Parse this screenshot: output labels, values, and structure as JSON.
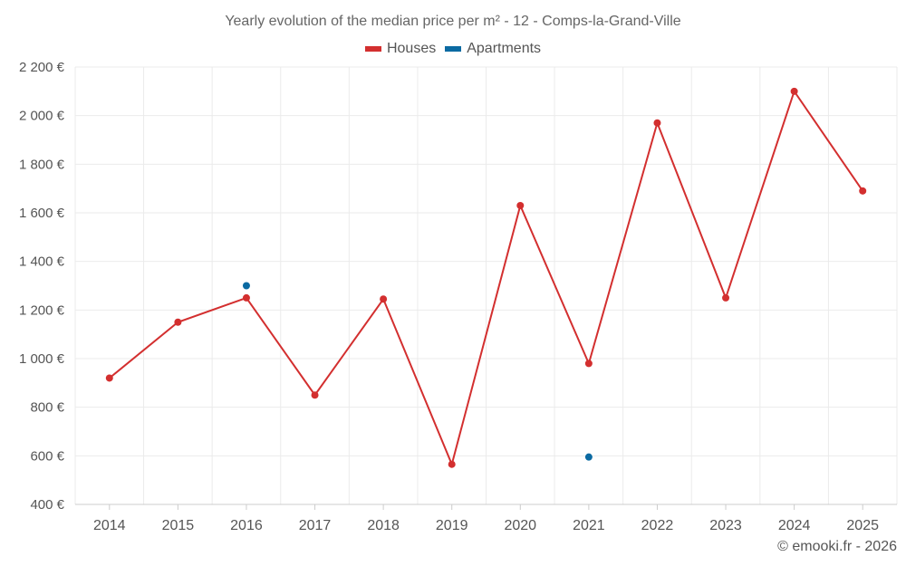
{
  "chart_data": {
    "type": "line",
    "title": "Yearly evolution of the median price per m² - 12 - Comps-la-Grand-Ville",
    "categories": [
      "2014",
      "2015",
      "2016",
      "2017",
      "2018",
      "2019",
      "2020",
      "2021",
      "2022",
      "2023",
      "2024",
      "2025"
    ],
    "series": [
      {
        "name": "Houses",
        "color": "#d32f2f",
        "values": [
          920,
          1150,
          1250,
          850,
          1245,
          565,
          1630,
          980,
          1970,
          1250,
          2100,
          1690
        ]
      },
      {
        "name": "Apartments",
        "color": "#0b6aa2",
        "values": [
          null,
          null,
          1300,
          null,
          null,
          null,
          null,
          595,
          null,
          null,
          null,
          null
        ]
      }
    ],
    "yticks": [
      400,
      600,
      800,
      1000,
      1200,
      1400,
      1600,
      1800,
      2000,
      2200
    ],
    "ytick_labels": [
      "400 €",
      "600 €",
      "800 €",
      "1 000 €",
      "1 200 €",
      "1 400 €",
      "1 600 €",
      "1 800 €",
      "2 000 €",
      "2 200 €"
    ],
    "ylim": [
      400,
      2200
    ],
    "grid": true,
    "legend_position": "top-center"
  },
  "credit": "© emooki.fr - 2026"
}
